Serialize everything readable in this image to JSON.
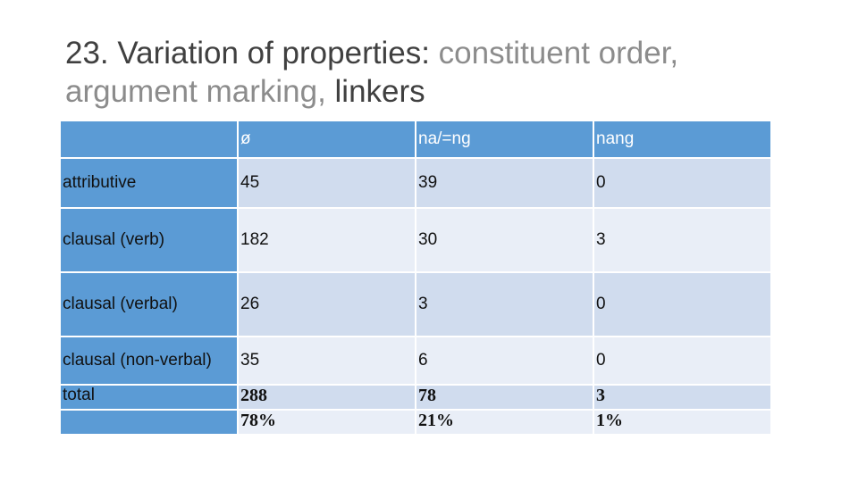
{
  "title": {
    "part1": "23. Variation of properties: ",
    "part2": "constituent order, argument marking,",
    "part3": " linkers"
  },
  "table": {
    "header": [
      "ø",
      "na/=ng",
      "nang"
    ],
    "rows": [
      {
        "label": "attributive",
        "cells": [
          45,
          39,
          0
        ]
      },
      {
        "label": "clausal (verb)",
        "cells": [
          182,
          30,
          3
        ]
      },
      {
        "label": "clausal (verbal)",
        "cells": [
          26,
          3,
          0
        ]
      },
      {
        "label": "clausal (non-verbal)",
        "cells": [
          35,
          6,
          0
        ]
      }
    ],
    "total": {
      "label": "total",
      "counts": [
        288,
        78,
        3
      ],
      "percents": [
        "78%",
        "21%",
        "1%"
      ]
    }
  }
}
